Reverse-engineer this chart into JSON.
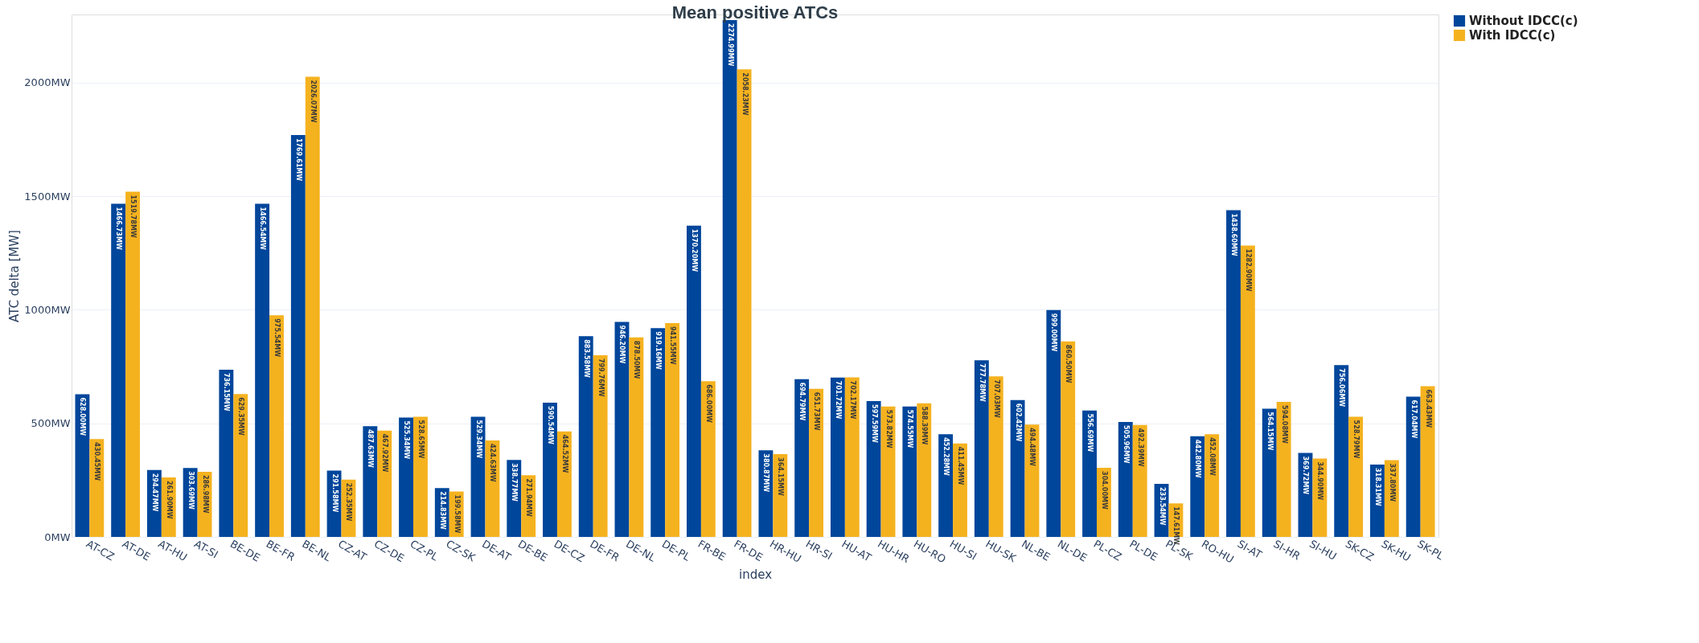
{
  "chart_data": {
    "type": "bar",
    "title": "Mean positive ATCs",
    "xlabel": "index",
    "ylabel": "ATC delta [MW]",
    "categories": [
      "AT-CZ",
      "AT-DE",
      "AT-HU",
      "AT-SI",
      "BE-DE",
      "BE-FR",
      "BE-NL",
      "CZ-AT",
      "CZ-DE",
      "CZ-PL",
      "CZ-SK",
      "DE-AT",
      "DE-BE",
      "DE-CZ",
      "DE-FR",
      "DE-NL",
      "DE-PL",
      "FR-BE",
      "FR-DE",
      "HR-HU",
      "HR-SI",
      "HU-AT",
      "HU-HR",
      "HU-RO",
      "HU-SI",
      "HU-SK",
      "NL-BE",
      "NL-DE",
      "PL-CZ",
      "PL-DE",
      "PL-SK",
      "RO-HU",
      "SI-AT",
      "SI-HR",
      "SI-HU",
      "SK-CZ",
      "SK-HU",
      "SK-PL"
    ],
    "series": [
      {
        "name": "Without IDCC(c)",
        "color": "#00469b",
        "values": [
          628.0,
          1466.73,
          294.47,
          303.69,
          736.15,
          1466.54,
          1769.61,
          291.58,
          487.63,
          525.34,
          214.83,
          529.34,
          338.77,
          590.54,
          883.58,
          946.2,
          919.16,
          1370.2,
          2274.99,
          380.87,
          694.79,
          701.72,
          597.59,
          574.55,
          452.28,
          777.78,
          602.42,
          999.0,
          556.69,
          505.96,
          233.54,
          442.8,
          1438.6,
          564.15,
          369.72,
          756.06,
          318.31,
          617.04
        ],
        "value_labels": [
          "628.00MW",
          "1466.73MW",
          "294.47MW",
          "303.69MW",
          "736.15MW",
          "1466.54MW",
          "1769.61MW",
          "291.58MW",
          "487.63MW",
          "525.34MW",
          "214.83MW",
          "529.34MW",
          "338.77MW",
          "590.54MW",
          "883.58MW",
          "946.20MW",
          "919.16MW",
          "1370.20MW",
          "2274.99MW",
          "380.87MW",
          "694.79MW",
          "701.72MW",
          "597.59MW",
          "574.55MW",
          "452.28MW",
          "777.78MW",
          "602.42MW",
          "999.00MW",
          "556.69MW",
          "505.96MW",
          "233.54MW",
          "442.80MW",
          "1438.60MW",
          "564.15MW",
          "369.72MW",
          "756.06MW",
          "318.31MW",
          "617.04MW"
        ]
      },
      {
        "name": "With IDCC(c)",
        "color": "#f5b21f",
        "values": [
          430.45,
          1519.78,
          261.9,
          286.98,
          629.35,
          975.54,
          2026.07,
          252.35,
          467.92,
          528.65,
          199.58,
          424.63,
          271.94,
          464.52,
          799.76,
          878.5,
          941.55,
          686.0,
          2058.23,
          364.15,
          651.73,
          702.17,
          573.82,
          588.39,
          411.45,
          707.03,
          494.48,
          860.5,
          304.0,
          492.39,
          147.61,
          452.08,
          1282.9,
          594.08,
          344.9,
          528.79,
          337.8,
          663.43
        ],
        "value_labels": [
          "430.45MW",
          "1519.78MW",
          "261.90MW",
          "286.98MW",
          "629.35MW",
          "975.54MW",
          "2026.07MW",
          "252.35MW",
          "467.92MW",
          "528.65MW",
          "199.58MW",
          "424.63MW",
          "271.94MW",
          "464.52MW",
          "799.76MW",
          "878.50MW",
          "941.55MW",
          "686.00MW",
          "2058.23MW",
          "364.15MW",
          "651.73MW",
          "702.17MW",
          "573.82MW",
          "588.39MW",
          "411.45MW",
          "707.03MW",
          "494.48MW",
          "860.50MW",
          "304.00MW",
          "492.39MW",
          "147.61MW",
          "452.08MW",
          "1282.90MW",
          "594.08MW",
          "344.90MW",
          "528.79MW",
          "337.80MW",
          "663.43MW"
        ]
      }
    ],
    "ylim": [
      0,
      2300
    ],
    "yticks": [
      {
        "value": 0,
        "label": "0MW"
      },
      {
        "value": 500,
        "label": "500MW"
      },
      {
        "value": 1000,
        "label": "1000MW"
      },
      {
        "value": 1500,
        "label": "1500MW"
      },
      {
        "value": 2000,
        "label": "2000MW"
      }
    ],
    "grid": "y",
    "legend": "top right"
  }
}
